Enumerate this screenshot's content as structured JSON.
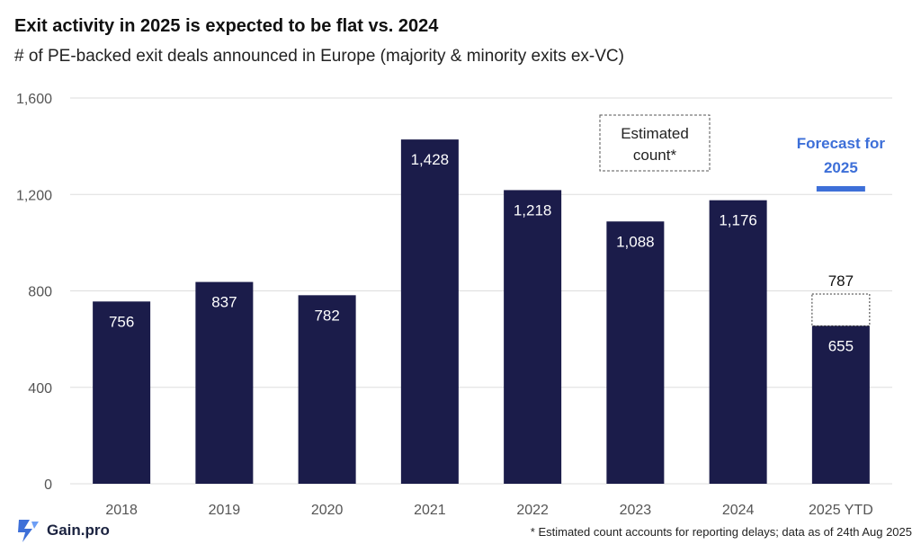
{
  "title": "Exit activity in 2025 is expected to be flat vs. 2024",
  "subtitle": "# of PE-backed exit deals announced in Europe (majority & minority exits ex-VC)",
  "estimated_label": [
    "Estimated",
    "count*"
  ],
  "forecast_label": [
    "Forecast for",
    "2025"
  ],
  "footnote": "* Estimated count accounts for reporting delays; data as of 24th Aug 2025",
  "brand": "Gain.pro",
  "colors": {
    "bar": "#1b1c4a",
    "forecast_accent": "#3d6fd8",
    "grid": "#dddddd",
    "axis_text": "#555555"
  },
  "chart_data": {
    "type": "bar",
    "categories": [
      "2018",
      "2019",
      "2020",
      "2021",
      "2022",
      "2023",
      "2024",
      "2025 YTD"
    ],
    "values": [
      756,
      837,
      782,
      1428,
      1218,
      1088,
      1176,
      655
    ],
    "data_labels": [
      "756",
      "837",
      "782",
      "1,428",
      "1,218",
      "1,088",
      "1,176",
      "655"
    ],
    "estimated": {
      "category": "2025 YTD",
      "value": 787,
      "label": "787"
    },
    "ylim": [
      0,
      1600
    ],
    "yticks": [
      0,
      400,
      800,
      1200,
      1600
    ],
    "ytick_labels": [
      "0",
      "400",
      "800",
      "1,200",
      "1,600"
    ],
    "grid": true,
    "title": "Exit activity in 2025 is expected to be flat vs. 2024",
    "xlabel": "",
    "ylabel": ""
  }
}
